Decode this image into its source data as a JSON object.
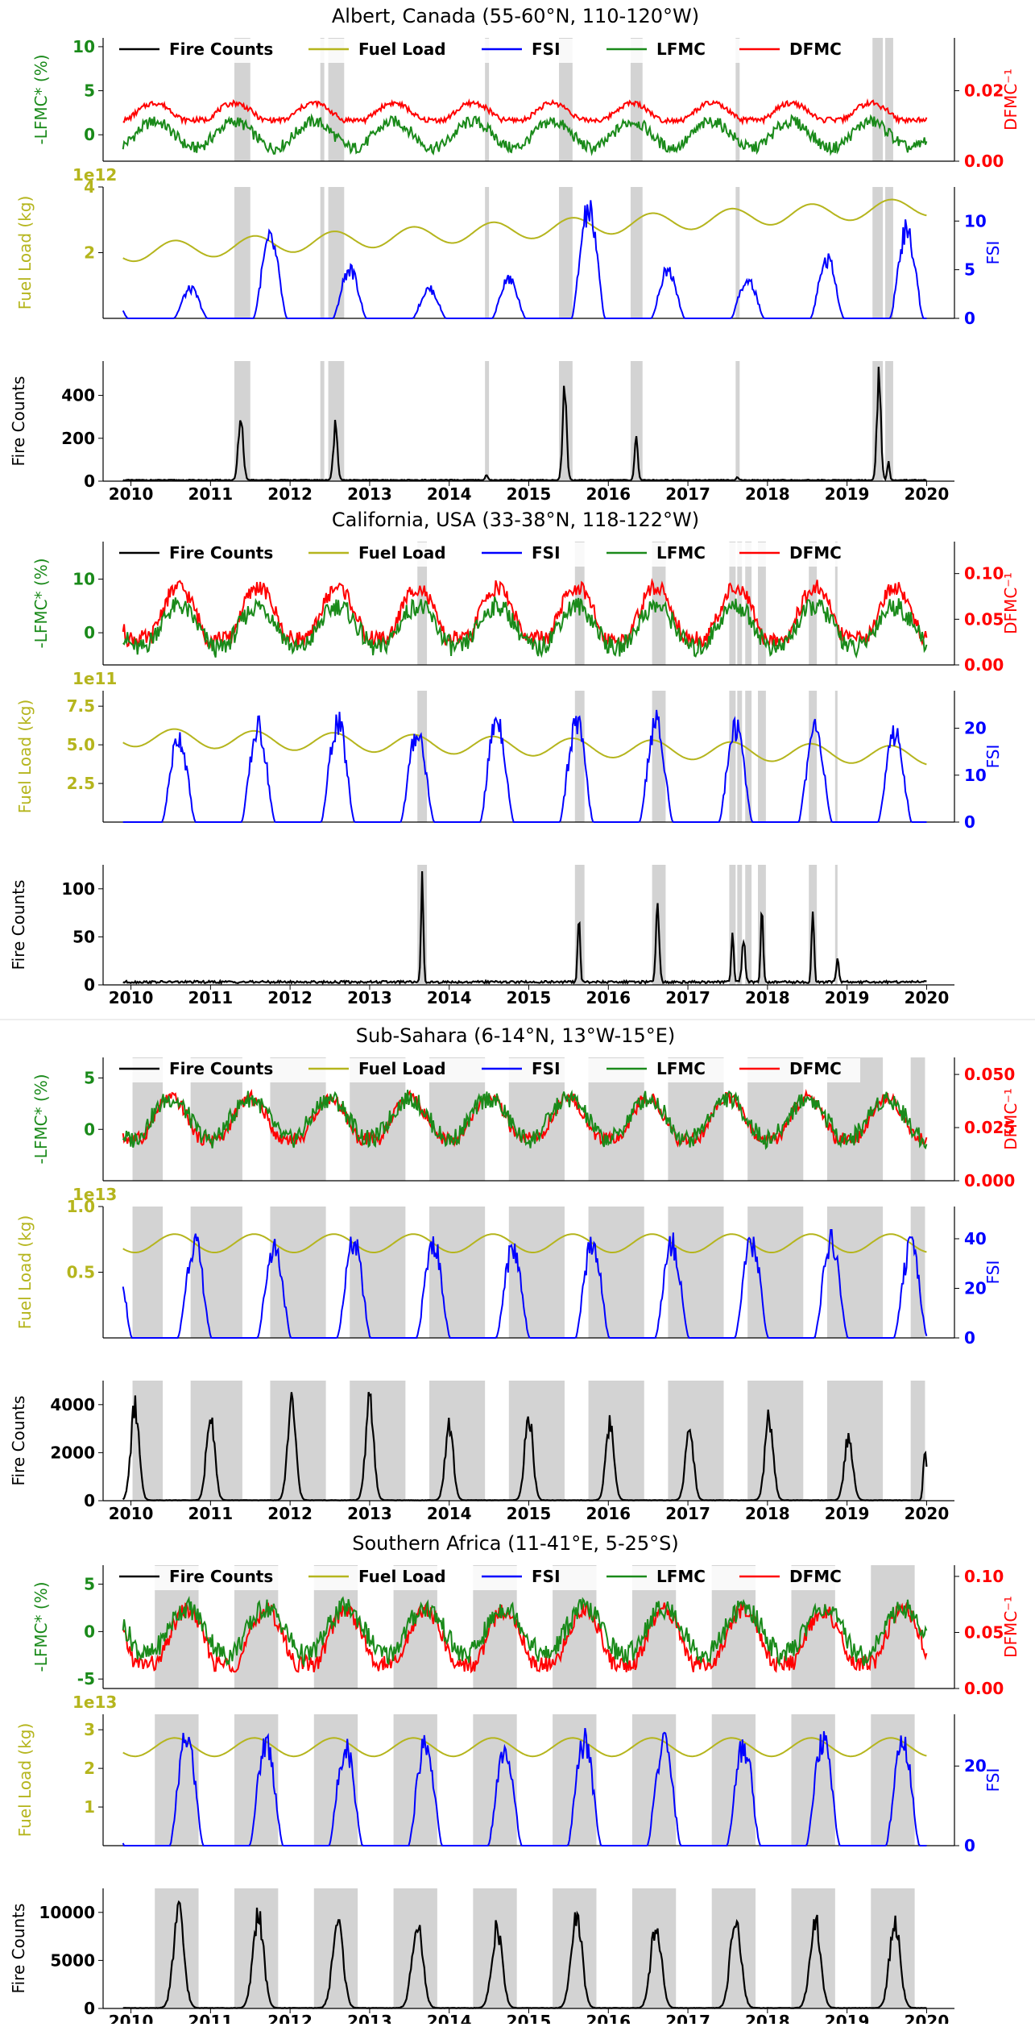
{
  "colors": {
    "fire": "#000000",
    "fuel": "#b5b51d",
    "fsi": "#0000ff",
    "lfmc": "#1a8a1a",
    "dfmc": "#ff0000",
    "shade": "#d3d3d3"
  },
  "legend": [
    "Fire Counts",
    "Fuel Load",
    "FSI",
    "LFMC",
    "DFMC"
  ],
  "years": [
    "2010",
    "2011",
    "2012",
    "2013",
    "2014",
    "2015",
    "2016",
    "2017",
    "2018",
    "2019",
    "2020"
  ],
  "chart_data": [
    {
      "type": "line",
      "title": "Albert, Canada (55-60°N, 110-120°W)",
      "shade": [
        [
          2011.3,
          2011.5
        ],
        [
          2012.38,
          2012.43
        ],
        [
          2012.48,
          2012.68
        ],
        [
          2014.45,
          2014.5
        ],
        [
          2015.38,
          2015.55
        ],
        [
          2016.28,
          2016.43
        ],
        [
          2017.6,
          2017.65
        ],
        [
          2019.32,
          2019.45
        ],
        [
          2019.48,
          2019.58
        ]
      ],
      "fire": {
        "ylabel": "Fire Counts",
        "ticks": [
          "0",
          "200",
          "400"
        ],
        "tickvals": [
          0,
          200,
          400
        ],
        "ylim": [
          0,
          560
        ],
        "base": 5,
        "peaks": [
          [
            2011.38,
            290,
            0.06
          ],
          [
            2012.57,
            260,
            0.05
          ],
          [
            2014.47,
            25,
            0.03
          ],
          [
            2015.45,
            420,
            0.05
          ],
          [
            2016.35,
            180,
            0.04
          ],
          [
            2017.62,
            15,
            0.03
          ],
          [
            2019.4,
            470,
            0.05
          ],
          [
            2019.52,
            80,
            0.03
          ]
        ]
      },
      "fuel": {
        "ylabel": "Fuel Load (kg)",
        "exp": "1e12",
        "ticks": [
          "2",
          "4"
        ],
        "tickvals": [
          2,
          4
        ],
        "ylim": [
          0,
          4
        ],
        "start": 2.0,
        "end": 3.4
      },
      "fsi": {
        "ylabel": "FSI",
        "ticks": [
          "0",
          "5",
          "10"
        ],
        "tickvals": [
          0,
          5,
          10
        ],
        "ylim": [
          0,
          13.5
        ],
        "season": [
          0.3,
          0.75
        ],
        "amps": [
          3.0,
          8.0,
          5.0,
          3.0,
          4.0,
          11.0,
          5.0,
          4.0,
          6.0,
          9.0
        ]
      },
      "moist": {
        "lfmc_label": "-LFMC* (%)",
        "dfmc_label": "DFMC⁻¹",
        "lticks": [
          "0",
          "5",
          "10"
        ],
        "ltickvals": [
          0,
          5,
          10
        ],
        "lylim": [
          -3,
          11
        ],
        "rticks": [
          "0.00",
          "0.02"
        ],
        "rtickvals": [
          0,
          0.02
        ],
        "rylim": [
          0,
          0.035
        ],
        "lfmc_base": 0,
        "lfmc_amp": 1.5,
        "dfmc_base": 0.0135,
        "dfmc_amp": 0.003
      }
    },
    {
      "type": "line",
      "title": "California, USA (33-38°N, 118-122°W)",
      "shade": [
        [
          2013.6,
          2013.72
        ],
        [
          2015.58,
          2015.7
        ],
        [
          2016.55,
          2016.72
        ],
        [
          2017.52,
          2017.6
        ],
        [
          2017.62,
          2017.68
        ],
        [
          2017.72,
          2017.8
        ],
        [
          2017.88,
          2017.98
        ],
        [
          2018.52,
          2018.62
        ],
        [
          2018.85,
          2018.88
        ]
      ],
      "fire": {
        "ylabel": "Fire Counts",
        "ticks": [
          "0",
          "50",
          "100"
        ],
        "tickvals": [
          0,
          50,
          100
        ],
        "ylim": [
          0,
          125
        ],
        "base": 3,
        "peaks": [
          [
            2013.66,
            105,
            0.03
          ],
          [
            2015.63,
            68,
            0.03
          ],
          [
            2016.62,
            85,
            0.04
          ],
          [
            2017.56,
            55,
            0.03
          ],
          [
            2017.7,
            45,
            0.04
          ],
          [
            2017.93,
            82,
            0.03
          ],
          [
            2018.57,
            75,
            0.03
          ],
          [
            2018.88,
            28,
            0.03
          ]
        ]
      },
      "fuel": {
        "ylabel": "Fuel Load (kg)",
        "exp": "1e11",
        "ticks": [
          "2.5",
          "5.0",
          "7.5"
        ],
        "tickvals": [
          2.5,
          5,
          7.5
        ],
        "ylim": [
          0,
          8.5
        ],
        "start": 5.5,
        "end": 4.3
      },
      "fsi": {
        "ylabel": "FSI",
        "ticks": [
          "0",
          "10",
          "20"
        ],
        "tickvals": [
          0,
          10,
          20
        ],
        "ylim": [
          0,
          28
        ],
        "season": [
          0.6,
          0.6
        ],
        "amps": [
          18,
          20,
          21,
          19,
          22,
          21,
          21,
          20,
          20,
          19
        ]
      },
      "moist": {
        "lfmc_label": "-LFMC* (%)",
        "dfmc_label": "DFMC⁻¹",
        "lticks": [
          "0",
          "10"
        ],
        "ltickvals": [
          0,
          10
        ],
        "lylim": [
          -6,
          17
        ],
        "rticks": [
          "0.00",
          "0.05",
          "0.10"
        ],
        "rtickvals": [
          0,
          0.05,
          0.1
        ],
        "rylim": [
          0,
          0.135
        ],
        "lfmc_base": 1,
        "lfmc_amp": 4,
        "dfmc_base": 0.05,
        "dfmc_amp": 0.035
      }
    },
    {
      "type": "line",
      "title": "Sub-Sahara (6-14°N, 13°W-15°E)",
      "shade": [
        [
          2010.02,
          2010.4
        ],
        [
          2010.75,
          2011.4
        ],
        [
          2011.75,
          2012.45
        ],
        [
          2012.75,
          2013.45
        ],
        [
          2013.75,
          2014.45
        ],
        [
          2014.75,
          2015.45
        ],
        [
          2015.75,
          2016.45
        ],
        [
          2016.75,
          2017.45
        ],
        [
          2017.75,
          2018.45
        ],
        [
          2018.75,
          2019.45
        ],
        [
          2019.8,
          2019.98
        ]
      ],
      "fire": {
        "ylabel": "Fire Counts",
        "ticks": [
          "0",
          "2000",
          "4000"
        ],
        "tickvals": [
          0,
          2000,
          4000
        ],
        "ylim": [
          0,
          5000
        ],
        "base": 20,
        "peaks": [
          [
            2010.05,
            3900,
            0.1
          ],
          [
            2011.0,
            3800,
            0.1
          ],
          [
            2012.02,
            4100,
            0.1
          ],
          [
            2013.0,
            4100,
            0.1
          ],
          [
            2014.0,
            3100,
            0.1
          ],
          [
            2015.0,
            3600,
            0.1
          ],
          [
            2016.02,
            3200,
            0.1
          ],
          [
            2017.02,
            2900,
            0.1
          ],
          [
            2018.02,
            3500,
            0.1
          ],
          [
            2019.02,
            2700,
            0.1
          ],
          [
            2019.98,
            2400,
            0.04
          ]
        ]
      },
      "fuel": {
        "ylabel": "Fuel Load (kg)",
        "exp": "1e13",
        "ticks": [
          "0.5",
          "1.0"
        ],
        "tickvals": [
          0.5,
          1.0
        ],
        "ylim": [
          0,
          1.0
        ],
        "start": 0.72,
        "end": 0.72
      },
      "fsi": {
        "ylabel": "FSI",
        "ticks": [
          "0",
          "20",
          "40"
        ],
        "tickvals": [
          0,
          20,
          40
        ],
        "ylim": [
          0,
          53
        ],
        "season": [
          0.0,
          0.8
        ],
        "amps": [
          38,
          37,
          38,
          38,
          36,
          38,
          38,
          38,
          38,
          36
        ]
      },
      "moist": {
        "lfmc_label": "-LFMC* (%)",
        "dfmc_label": "DFMC⁻¹",
        "lticks": [
          "0",
          "5"
        ],
        "ltickvals": [
          0,
          5
        ],
        "lylim": [
          -5,
          7
        ],
        "rticks": [
          "0.000",
          "0.025",
          "0.050"
        ],
        "rtickvals": [
          0,
          0.025,
          0.05
        ],
        "rylim": [
          0,
          0.058
        ],
        "lfmc_base": 1,
        "lfmc_amp": 2,
        "dfmc_base": 0.027,
        "dfmc_amp": 0.012
      }
    },
    {
      "type": "line",
      "title": "Southern Africa (11-41°E, 5-25°S)",
      "shade": [
        [
          2010.3,
          2010.85
        ],
        [
          2011.3,
          2011.85
        ],
        [
          2012.3,
          2012.85
        ],
        [
          2013.3,
          2013.85
        ],
        [
          2014.3,
          2014.85
        ],
        [
          2015.3,
          2015.85
        ],
        [
          2016.3,
          2016.85
        ],
        [
          2017.3,
          2017.85
        ],
        [
          2018.3,
          2018.85
        ],
        [
          2019.3,
          2019.85
        ]
      ],
      "fire": {
        "ylabel": "Fire Counts",
        "ticks": [
          "0",
          "5000",
          "10000"
        ],
        "tickvals": [
          0,
          5000,
          10000
        ],
        "ylim": [
          0,
          12500
        ],
        "base": 50,
        "peaks": [
          [
            2010.6,
            10000,
            0.13
          ],
          [
            2011.6,
            9800,
            0.13
          ],
          [
            2012.6,
            9000,
            0.13
          ],
          [
            2013.6,
            9300,
            0.13
          ],
          [
            2014.6,
            8300,
            0.13
          ],
          [
            2015.6,
            10000,
            0.13
          ],
          [
            2016.6,
            8600,
            0.13
          ],
          [
            2017.6,
            9500,
            0.13
          ],
          [
            2018.6,
            9100,
            0.13
          ],
          [
            2019.6,
            9000,
            0.13
          ]
        ]
      },
      "fuel": {
        "ylabel": "Fuel Load (kg)",
        "exp": "1e13",
        "ticks": [
          "1",
          "2",
          "3"
        ],
        "tickvals": [
          1,
          2,
          3
        ],
        "ylim": [
          0,
          3.4
        ],
        "start": 2.55,
        "end": 2.55
      },
      "fsi": {
        "ylabel": "FSI",
        "ticks": [
          "0",
          "20"
        ],
        "tickvals": [
          0,
          20
        ],
        "ylim": [
          0,
          33
        ],
        "season": [
          0.7,
          0.7
        ],
        "amps": [
          27,
          26,
          25,
          26,
          25,
          26,
          26,
          25,
          26,
          26
        ]
      },
      "moist": {
        "lfmc_label": "-LFMC* (%)",
        "dfmc_label": "DFMC⁻¹",
        "lticks": [
          "-5",
          "0",
          "5"
        ],
        "ltickvals": [
          -5,
          0,
          5
        ],
        "lylim": [
          -6,
          7
        ],
        "rticks": [
          "0.00",
          "0.05",
          "0.10"
        ],
        "rtickvals": [
          0,
          0.05,
          0.1
        ],
        "rylim": [
          0,
          0.11
        ],
        "lfmc_base": 0,
        "lfmc_amp": 2.5,
        "dfmc_base": 0.04,
        "dfmc_amp": 0.03
      }
    }
  ]
}
